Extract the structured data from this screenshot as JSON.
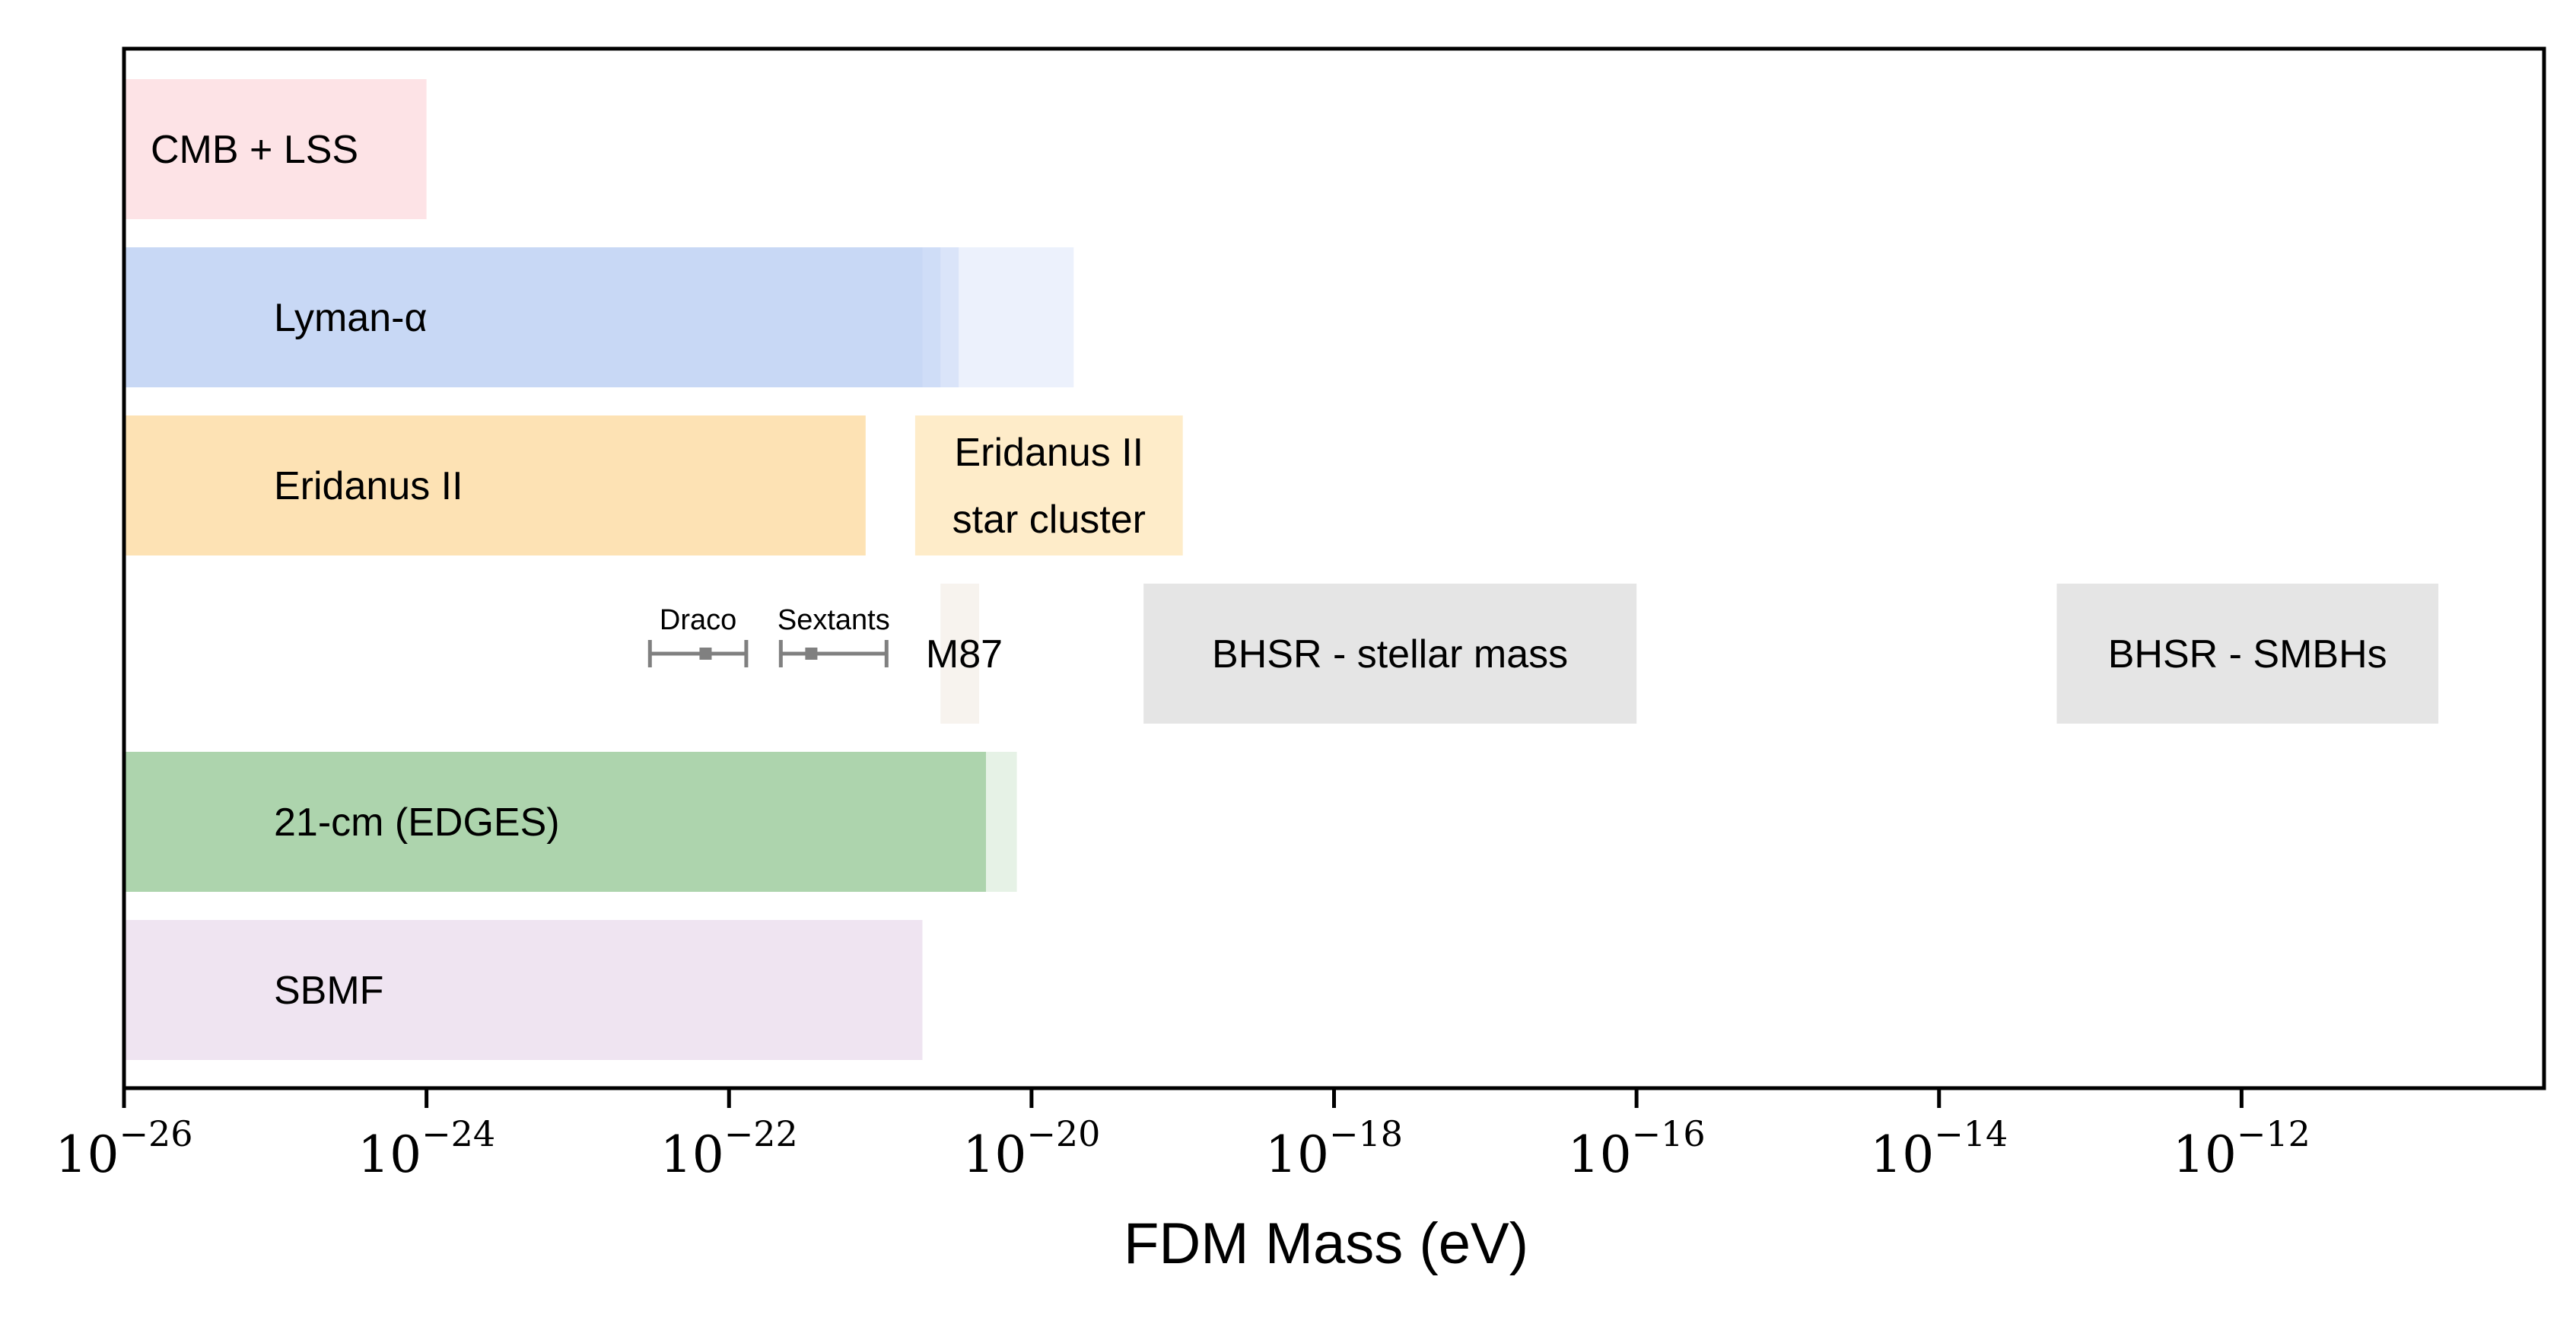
{
  "chart_data": {
    "type": "bar",
    "orientation": "horizontal",
    "x_scale": "log",
    "xlim": [
      1e-26,
      1e-10
    ],
    "xlabel": "FDM Mass (eV)",
    "xticks": [
      -26,
      -24,
      -22,
      -20,
      -18,
      -16,
      -14,
      -12
    ],
    "xtick_base": "10",
    "grid": false,
    "legend": "none",
    "rows": [
      {
        "bars": [
          {
            "label": "CMB + LSS",
            "x_range": [
              1e-26,
              1e-24
            ],
            "color": "#fde3e6",
            "opacity": 1.0
          }
        ]
      },
      {
        "bars": [
          {
            "label": "Lyman-α",
            "x_range": [
              1e-26,
              1.9e-20
            ],
            "color": "#c8d8f5",
            "opacity": 0.35
          },
          {
            "label": "",
            "x_range": [
              1e-26,
              3.3e-21
            ],
            "color": "#c8d8f5",
            "opacity": 0.5
          },
          {
            "label": "",
            "x_range": [
              1e-26,
              2.5e-21
            ],
            "color": "#c8d8f5",
            "opacity": 0.6
          },
          {
            "label": "",
            "x_range": [
              1e-26,
              1.9e-21
            ],
            "color": "#c8d8f5",
            "opacity": 1.0
          }
        ]
      },
      {
        "bars": [
          {
            "label": "Eridanus II",
            "x_range": [
              1e-26,
              8e-22
            ],
            "color": "#fde2b4",
            "opacity": 1.0
          },
          {
            "label": "Eridanus II\nstar cluster",
            "x_range": [
              1.7e-21,
              1e-19
            ],
            "color": "#feecc9",
            "opacity": 1.0
          }
        ]
      },
      {
        "bars": [
          {
            "label": "M87",
            "x_range": [
              2.5e-21,
              4.5e-21
            ],
            "color": "#f7f3ee",
            "opacity": 1.0
          },
          {
            "label": "BHSR - stellar mass",
            "x_range": [
              5.5e-20,
              1e-16
            ],
            "color": "#e5e5e5",
            "opacity": 1.0
          },
          {
            "label": "BHSR - SMBHs",
            "x_range": [
              6e-14,
              2e-11
            ],
            "color": "#e5e5e5",
            "opacity": 1.0
          }
        ],
        "error_bars": [
          {
            "label": "Draco",
            "center": 7e-23,
            "range": [
              3e-23,
              1.3e-22
            ],
            "color": "#808080"
          },
          {
            "label": "Sextants",
            "center": 3.5e-22,
            "range": [
              2.2e-22,
              1.1e-21
            ],
            "color": "#808080"
          }
        ]
      },
      {
        "bars": [
          {
            "label": "21-cm (EDGES)",
            "x_range": [
              1e-26,
              8e-21
            ],
            "color": "#add4ad",
            "opacity": 0.3
          },
          {
            "label": "",
            "x_range": [
              1e-26,
              5e-21
            ],
            "color": "#add4ad",
            "opacity": 1.0
          }
        ]
      },
      {
        "bars": [
          {
            "label": "SBMF",
            "x_range": [
              1e-26,
              1.9e-21
            ],
            "color": "#efe4f1",
            "opacity": 1.0
          }
        ]
      }
    ]
  }
}
